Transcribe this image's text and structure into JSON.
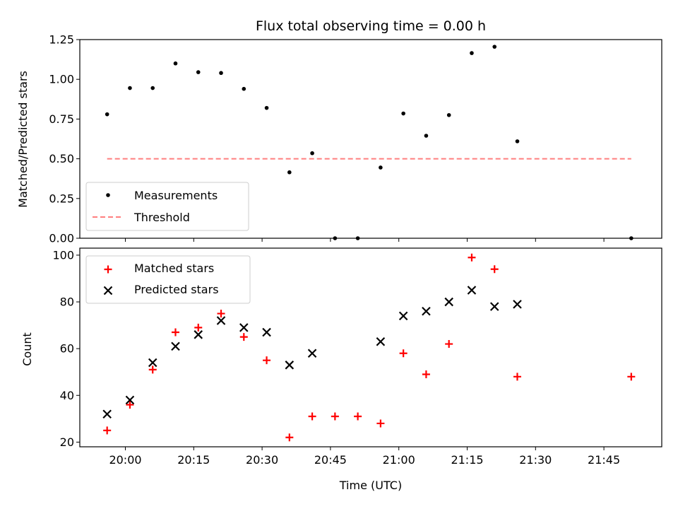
{
  "chart_data": [
    {
      "type": "scatter",
      "title": "Flux total observing time = 0.00 h",
      "xlabel": "",
      "ylabel": "Matched/Predicted stars",
      "ylim": [
        0,
        1.25
      ],
      "y_ticks": [
        "0.00",
        "0.25",
        "0.50",
        "0.75",
        "1.00",
        "1.25"
      ],
      "x": [
        "19:56",
        "20:01",
        "20:06",
        "20:11",
        "20:16",
        "20:21",
        "20:26",
        "20:31",
        "20:36",
        "20:41",
        "20:46",
        "20:51",
        "20:56",
        "21:01",
        "21:06",
        "21:11",
        "21:16",
        "21:21",
        "21:26",
        "21:51"
      ],
      "series": [
        {
          "name": "Measurements",
          "marker": "dot",
          "color": "#000000",
          "values": [
            0.78,
            0.945,
            0.945,
            1.1,
            1.045,
            1.04,
            0.94,
            0.82,
            0.415,
            0.535,
            0.0,
            0.0,
            0.445,
            0.785,
            0.645,
            0.775,
            1.165,
            1.205,
            0.61,
            0.0
          ]
        },
        {
          "name": "Threshold",
          "marker": "dashed-line",
          "color": "#ff7f7f",
          "x": [
            "19:56",
            "21:51"
          ],
          "values": [
            0.5,
            0.5
          ]
        }
      ],
      "legend": "lower-left",
      "grid": false
    },
    {
      "type": "scatter",
      "title": "",
      "xlabel": "Time (UTC)",
      "ylabel": "Count",
      "ylim": [
        18,
        103
      ],
      "y_ticks": [
        "20",
        "40",
        "60",
        "80",
        "100"
      ],
      "x_ticks": [
        "20:00",
        "20:15",
        "20:30",
        "20:45",
        "21:00",
        "21:15",
        "21:30",
        "21:45"
      ],
      "series": [
        {
          "name": "Matched stars",
          "marker": "plus",
          "color": "#ff0000",
          "x": [
            "19:56",
            "20:01",
            "20:06",
            "20:11",
            "20:16",
            "20:21",
            "20:26",
            "20:31",
            "20:36",
            "20:41",
            "20:46",
            "20:51",
            "20:56",
            "21:01",
            "21:06",
            "21:11",
            "21:16",
            "21:21",
            "21:26",
            "21:51"
          ],
          "values": [
            25,
            36,
            51,
            67,
            69,
            75,
            65,
            55,
            22,
            31,
            31,
            31,
            28,
            58,
            49,
            62,
            99,
            94,
            48,
            48
          ]
        },
        {
          "name": "Predicted stars",
          "marker": "x",
          "color": "#000000",
          "x": [
            "19:56",
            "20:01",
            "20:06",
            "20:11",
            "20:16",
            "20:21",
            "20:26",
            "20:31",
            "20:36",
            "20:41",
            "20:56",
            "21:01",
            "21:06",
            "21:11",
            "21:16",
            "21:21",
            "21:26"
          ],
          "values": [
            32,
            38,
            54,
            61,
            66,
            72,
            69,
            67,
            53,
            58,
            63,
            74,
            76,
            80,
            85,
            78,
            79
          ]
        }
      ],
      "legend": "upper-left",
      "grid": false
    }
  ]
}
